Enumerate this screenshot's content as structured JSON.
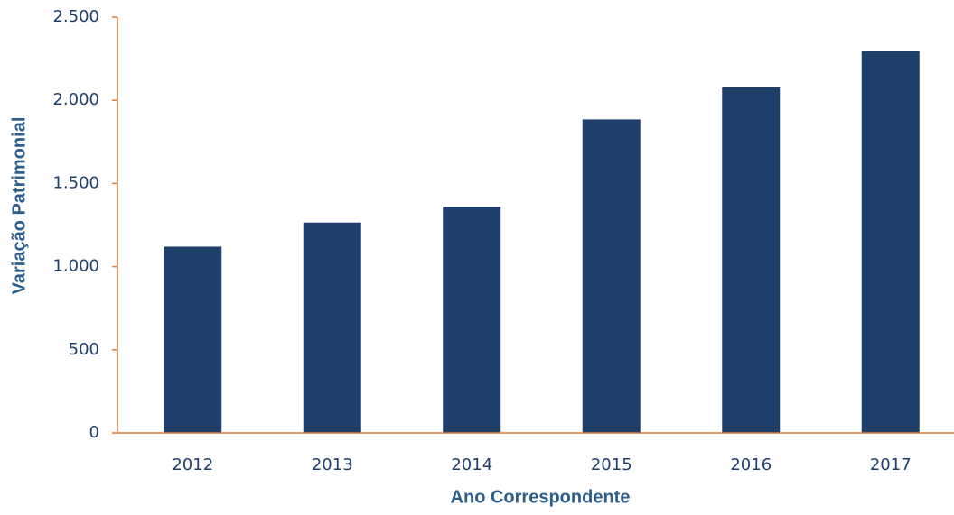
{
  "chart_data": {
    "type": "bar",
    "x_label": "Ano Correspondente",
    "y_label": "Variação Patrimonial",
    "categories": [
      "2012",
      "2013",
      "2014",
      "2015",
      "2016",
      "2017"
    ],
    "values": [
      1120,
      1265,
      1360,
      1885,
      2078,
      2298
    ],
    "color": "#1f3f6b",
    "axis_color": "#e07b39",
    "ylim": [
      0,
      2500
    ],
    "yticks": [
      0,
      500,
      {
        "value": 1000,
        "label": "1.000"
      },
      {
        "value": 1500,
        "label": "1.500"
      },
      {
        "value": 2000,
        "label": "2.000"
      },
      {
        "value": 2500,
        "label": "2.500"
      }
    ],
    "grid": false
  }
}
